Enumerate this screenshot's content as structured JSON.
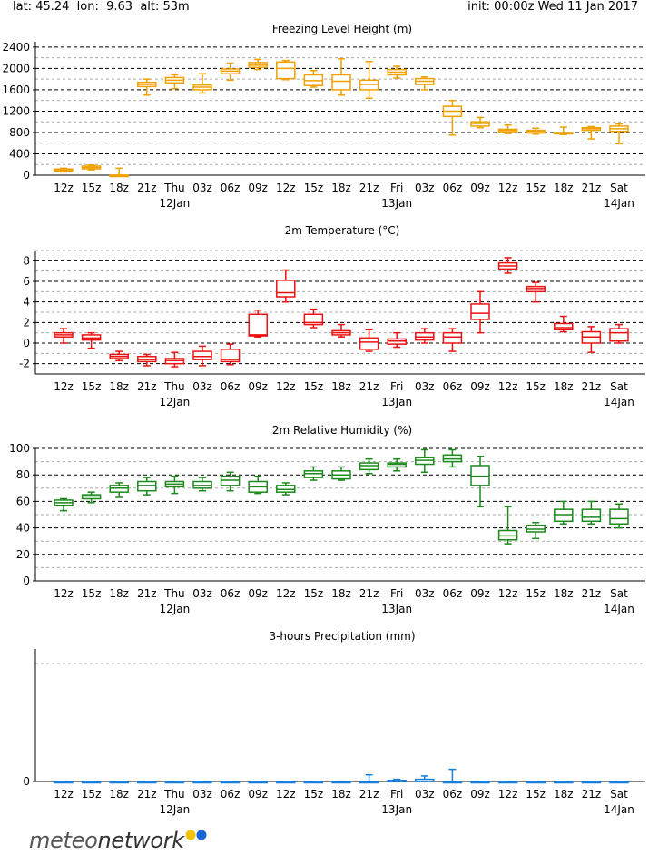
{
  "header": {
    "location": "lat: 45.24  lon:  9.63  alt: 53m",
    "init": "init: 00:00z Wed 11 Jan 2017"
  },
  "logo": {
    "part1": "meteo",
    "part2": "network"
  },
  "time_labels": [
    "12z",
    "15z",
    "18z",
    "21z",
    "Thu",
    "03z",
    "06z",
    "09z",
    "12z",
    "15z",
    "18z",
    "21z",
    "Fri",
    "03z",
    "06z",
    "09z",
    "12z",
    "15z",
    "18z",
    "21z",
    "Sat"
  ],
  "date_labels": [
    {
      "index": 4,
      "text": "12Jan"
    },
    {
      "index": 12,
      "text": "13Jan"
    },
    {
      "index": 20,
      "text": "14Jan"
    }
  ],
  "chart_data": [
    {
      "type": "boxplot",
      "title": "Freezing Level Height (m)",
      "color": "#f0a000",
      "ylim": [
        0,
        2500
      ],
      "yticks": [
        0,
        400,
        800,
        1200,
        1600,
        2000,
        2400
      ],
      "grid": "dashed",
      "boxes": [
        {
          "min": 60,
          "q1": 80,
          "med": 100,
          "q3": 115,
          "max": 130
        },
        {
          "min": 100,
          "q1": 120,
          "med": 145,
          "q3": 170,
          "max": 190
        },
        {
          "min": 0,
          "q1": 0,
          "med": 0,
          "q3": 0,
          "max": 130
        },
        {
          "min": 1500,
          "q1": 1660,
          "med": 1700,
          "q3": 1740,
          "max": 1800
        },
        {
          "min": 1620,
          "q1": 1730,
          "med": 1780,
          "q3": 1830,
          "max": 1880
        },
        {
          "min": 1540,
          "q1": 1600,
          "med": 1650,
          "q3": 1690,
          "max": 1900
        },
        {
          "min": 1780,
          "q1": 1900,
          "med": 1950,
          "q3": 1990,
          "max": 2100
        },
        {
          "min": 1980,
          "q1": 2020,
          "med": 2060,
          "q3": 2110,
          "max": 2170
        },
        {
          "min": 1790,
          "q1": 1810,
          "med": 2000,
          "q3": 2120,
          "max": 2150
        },
        {
          "min": 1650,
          "q1": 1680,
          "med": 1770,
          "q3": 1880,
          "max": 1960
        },
        {
          "min": 1500,
          "q1": 1600,
          "med": 1760,
          "q3": 1880,
          "max": 2180
        },
        {
          "min": 1440,
          "q1": 1600,
          "med": 1700,
          "q3": 1780,
          "max": 2130
        },
        {
          "min": 1820,
          "q1": 1880,
          "med": 1930,
          "q3": 1980,
          "max": 2040
        },
        {
          "min": 1600,
          "q1": 1700,
          "med": 1760,
          "q3": 1810,
          "max": 1840
        },
        {
          "min": 750,
          "q1": 1100,
          "med": 1200,
          "q3": 1290,
          "max": 1400
        },
        {
          "min": 890,
          "q1": 920,
          "med": 970,
          "q3": 1000,
          "max": 1080
        },
        {
          "min": 780,
          "q1": 810,
          "med": 840,
          "q3": 860,
          "max": 940
        },
        {
          "min": 770,
          "q1": 790,
          "med": 820,
          "q3": 840,
          "max": 880
        },
        {
          "min": 760,
          "q1": 780,
          "med": 790,
          "q3": 800,
          "max": 900
        },
        {
          "min": 680,
          "q1": 840,
          "med": 870,
          "q3": 890,
          "max": 910
        },
        {
          "min": 590,
          "q1": 820,
          "med": 870,
          "q3": 920,
          "max": 960
        }
      ]
    },
    {
      "type": "boxplot",
      "title": "2m Temperature (°C)",
      "color": "#ee1111",
      "ylim": [
        -3,
        9
      ],
      "yticks": [
        -2,
        0,
        2,
        4,
        6,
        8
      ],
      "grid": "dashed",
      "boxes": [
        {
          "min": 0,
          "q1": 0.6,
          "med": 0.8,
          "q3": 1.0,
          "max": 1.4
        },
        {
          "min": -0.5,
          "q1": 0.3,
          "med": 0.5,
          "q3": 0.8,
          "max": 1.0
        },
        {
          "min": -1.7,
          "q1": -1.5,
          "med": -1.3,
          "q3": -1.1,
          "max": -0.8
        },
        {
          "min": -2.2,
          "q1": -1.8,
          "med": -1.6,
          "q3": -1.3,
          "max": -1.1
        },
        {
          "min": -2.3,
          "q1": -2.0,
          "med": -1.7,
          "q3": -1.5,
          "max": -0.9
        },
        {
          "min": -2.2,
          "q1": -1.6,
          "med": -1.3,
          "q3": -0.8,
          "max": -0.3
        },
        {
          "min": -2.1,
          "q1": -1.8,
          "med": -1.6,
          "q3": -0.6,
          "max": -0.1
        },
        {
          "min": 0.6,
          "q1": 0.7,
          "med": 0.8,
          "q3": 2.8,
          "max": 3.2
        },
        {
          "min": 4.0,
          "q1": 4.5,
          "med": 4.9,
          "q3": 6.1,
          "max": 7.1
        },
        {
          "min": 1.5,
          "q1": 1.8,
          "med": 2.0,
          "q3": 2.8,
          "max": 3.3
        },
        {
          "min": 0.6,
          "q1": 0.8,
          "med": 1.0,
          "q3": 1.2,
          "max": 1.8
        },
        {
          "min": -0.8,
          "q1": -0.6,
          "med": 0.1,
          "q3": 0.5,
          "max": 1.3
        },
        {
          "min": -0.4,
          "q1": -0.1,
          "med": 0.2,
          "q3": 0.4,
          "max": 1.0
        },
        {
          "min": 0,
          "q1": 0.3,
          "med": 0.6,
          "q3": 1.0,
          "max": 1.4
        },
        {
          "min": -0.8,
          "q1": 0,
          "med": 0.6,
          "q3": 1.0,
          "max": 1.4
        },
        {
          "min": 1.0,
          "q1": 2.3,
          "med": 2.9,
          "q3": 3.8,
          "max": 5.0
        },
        {
          "min": 6.8,
          "q1": 7.2,
          "med": 7.5,
          "q3": 7.8,
          "max": 8.3
        },
        {
          "min": 4.0,
          "q1": 5.0,
          "med": 5.3,
          "q3": 5.5,
          "max": 5.9
        },
        {
          "min": 1.1,
          "q1": 1.3,
          "med": 1.5,
          "q3": 1.9,
          "max": 2.6
        },
        {
          "min": -0.9,
          "q1": 0,
          "med": 0.6,
          "q3": 1.1,
          "max": 1.6
        },
        {
          "min": 0,
          "q1": 0.2,
          "med": 1.0,
          "q3": 1.4,
          "max": 1.8
        }
      ]
    },
    {
      "type": "boxplot",
      "title": "2m Relative Humidity (%)",
      "color": "#1a8a1a",
      "ylim": [
        0,
        100
      ],
      "yticks": [
        0,
        20,
        40,
        60,
        80,
        100
      ],
      "grid": "dashed",
      "boxes": [
        {
          "min": 53,
          "q1": 57,
          "med": 59,
          "q3": 61,
          "max": 62
        },
        {
          "min": 59,
          "q1": 62,
          "med": 64,
          "q3": 65,
          "max": 67
        },
        {
          "min": 63,
          "q1": 67,
          "med": 70,
          "q3": 72,
          "max": 74
        },
        {
          "min": 65,
          "q1": 68,
          "med": 72,
          "q3": 75,
          "max": 78
        },
        {
          "min": 66,
          "q1": 71,
          "med": 73,
          "q3": 75,
          "max": 79
        },
        {
          "min": 68,
          "q1": 70,
          "med": 72,
          "q3": 75,
          "max": 78
        },
        {
          "min": 68,
          "q1": 72,
          "med": 76,
          "q3": 79,
          "max": 82
        },
        {
          "min": 66,
          "q1": 67,
          "med": 71,
          "q3": 75,
          "max": 79
        },
        {
          "min": 65,
          "q1": 67,
          "med": 69,
          "q3": 72,
          "max": 74
        },
        {
          "min": 76,
          "q1": 78,
          "med": 81,
          "q3": 83,
          "max": 86
        },
        {
          "min": 76,
          "q1": 77,
          "med": 80,
          "q3": 83,
          "max": 86
        },
        {
          "min": 81,
          "q1": 84,
          "med": 87,
          "q3": 89,
          "max": 92
        },
        {
          "min": 83,
          "q1": 86,
          "med": 88,
          "q3": 89,
          "max": 92
        },
        {
          "min": 82,
          "q1": 88,
          "med": 91,
          "q3": 93,
          "max": 99
        },
        {
          "min": 86,
          "q1": 90,
          "med": 92,
          "q3": 95,
          "max": 99
        },
        {
          "min": 56,
          "q1": 72,
          "med": 79,
          "q3": 87,
          "max": 94
        },
        {
          "min": 28,
          "q1": 31,
          "med": 34,
          "q3": 38,
          "max": 56
        },
        {
          "min": 32,
          "q1": 37,
          "med": 39,
          "q3": 42,
          "max": 44
        },
        {
          "min": 43,
          "q1": 45,
          "med": 50,
          "q3": 54,
          "max": 60
        },
        {
          "min": 43,
          "q1": 45,
          "med": 48,
          "q3": 54,
          "max": 60
        },
        {
          "min": 40,
          "q1": 43,
          "med": 47,
          "q3": 54,
          "max": 58
        }
      ]
    },
    {
      "type": "boxplot",
      "title": "3-hours Precipitation (mm)",
      "color": "#1a7fdc",
      "ylim": [
        0,
        1.2
      ],
      "yticks": [
        0
      ],
      "grid": "top-only",
      "boxes": [
        {
          "min": 0,
          "q1": 0,
          "med": 0,
          "q3": 0,
          "max": 0
        },
        {
          "min": 0,
          "q1": 0,
          "med": 0,
          "q3": 0,
          "max": 0
        },
        {
          "min": 0,
          "q1": 0,
          "med": 0,
          "q3": 0,
          "max": 0
        },
        {
          "min": 0,
          "q1": 0,
          "med": 0,
          "q3": 0,
          "max": 0
        },
        {
          "min": 0,
          "q1": 0,
          "med": 0,
          "q3": 0,
          "max": 0
        },
        {
          "min": 0,
          "q1": 0,
          "med": 0,
          "q3": 0,
          "max": 0
        },
        {
          "min": 0,
          "q1": 0,
          "med": 0,
          "q3": 0,
          "max": 0
        },
        {
          "min": 0,
          "q1": 0,
          "med": 0,
          "q3": 0,
          "max": 0
        },
        {
          "min": 0,
          "q1": 0,
          "med": 0,
          "q3": 0,
          "max": 0
        },
        {
          "min": 0,
          "q1": 0,
          "med": 0,
          "q3": 0,
          "max": 0
        },
        {
          "min": 0,
          "q1": 0,
          "med": 0,
          "q3": 0,
          "max": 0
        },
        {
          "min": 0,
          "q1": 0,
          "med": 0,
          "q3": 0,
          "max": 0.06
        },
        {
          "min": 0,
          "q1": 0,
          "med": 0,
          "q3": 0.01,
          "max": 0.02
        },
        {
          "min": 0,
          "q1": 0,
          "med": 0,
          "q3": 0.02,
          "max": 0.05
        },
        {
          "min": 0,
          "q1": 0,
          "med": 0,
          "q3": 0,
          "max": 0.11
        },
        {
          "min": 0,
          "q1": 0,
          "med": 0,
          "q3": 0,
          "max": 0
        },
        {
          "min": 0,
          "q1": 0,
          "med": 0,
          "q3": 0,
          "max": 0
        },
        {
          "min": 0,
          "q1": 0,
          "med": 0,
          "q3": 0,
          "max": 0
        },
        {
          "min": 0,
          "q1": 0,
          "med": 0,
          "q3": 0,
          "max": 0
        },
        {
          "min": 0,
          "q1": 0,
          "med": 0,
          "q3": 0,
          "max": 0
        },
        {
          "min": 0,
          "q1": 0,
          "med": 0,
          "q3": 0,
          "max": 0
        }
      ]
    }
  ]
}
